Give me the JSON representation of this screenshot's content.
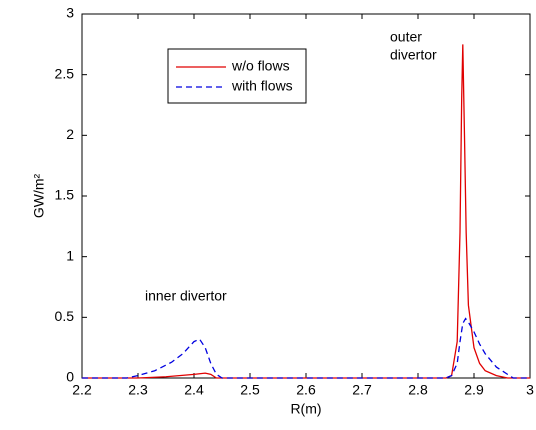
{
  "chart_data": {
    "type": "line",
    "xlabel": "R(m)",
    "ylabel": "GW/m²",
    "annotations": [
      "outer",
      "divertor",
      "inner divertor"
    ],
    "xlim": [
      2.2,
      3
    ],
    "ylim": [
      0,
      3
    ],
    "xticks": [
      2.2,
      2.3,
      2.4,
      2.5,
      2.6,
      2.7,
      2.8,
      2.9,
      3
    ],
    "yticks": [
      0,
      0.5,
      1,
      1.5,
      2,
      2.5,
      3
    ],
    "series": [
      {
        "name": "w/o flows",
        "color": "#e00000",
        "dash": "solid",
        "x": [
          2.2,
          2.3,
          2.35,
          2.4,
          2.42,
          2.43,
          2.44,
          2.85,
          2.86,
          2.87,
          2.875,
          2.878,
          2.88,
          2.883,
          2.886,
          2.89,
          2.9,
          2.91,
          2.92,
          2.94,
          2.96,
          3.0
        ],
        "values": [
          0,
          0,
          0.01,
          0.03,
          0.04,
          0.03,
          0,
          0,
          0.02,
          0.3,
          1.2,
          2.3,
          2.75,
          2.0,
          1.2,
          0.6,
          0.25,
          0.12,
          0.06,
          0.02,
          0,
          0
        ]
      },
      {
        "name": "with flows",
        "color": "#0000e0",
        "dash": "dashed",
        "x": [
          2.2,
          2.28,
          2.3,
          2.33,
          2.36,
          2.38,
          2.4,
          2.41,
          2.42,
          2.43,
          2.44,
          2.45,
          2.85,
          2.86,
          2.87,
          2.875,
          2.88,
          2.885,
          2.89,
          2.9,
          2.91,
          2.92,
          2.94,
          2.96,
          2.97,
          3.0
        ],
        "values": [
          0,
          0,
          0.02,
          0.06,
          0.13,
          0.2,
          0.3,
          0.32,
          0.25,
          0.12,
          0.03,
          0,
          0,
          0.02,
          0.12,
          0.3,
          0.45,
          0.49,
          0.46,
          0.38,
          0.28,
          0.2,
          0.09,
          0.03,
          0,
          0
        ]
      }
    ]
  }
}
